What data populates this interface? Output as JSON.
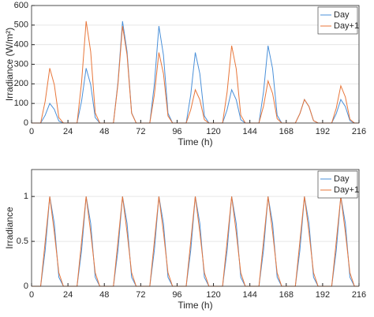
{
  "chart_data": [
    {
      "type": "line",
      "ylabel": "Irradiance (W/m²)",
      "xlabel": "Time (h)",
      "x": [
        0,
        3,
        6,
        9,
        12,
        15,
        18,
        21,
        24,
        27,
        30,
        33,
        36,
        39,
        42,
        45,
        48,
        51,
        54,
        57,
        60,
        63,
        66,
        69,
        72,
        75,
        78,
        81,
        84,
        87,
        90,
        93,
        96,
        99,
        102,
        105,
        108,
        111,
        114,
        117,
        120,
        123,
        126,
        129,
        132,
        135,
        138,
        141,
        144,
        147,
        150,
        153,
        156,
        159,
        162,
        165,
        168,
        171,
        174,
        177,
        180,
        183,
        186,
        189,
        192,
        195,
        198,
        201,
        204,
        207,
        210,
        213,
        216
      ],
      "series": [
        {
          "name": "Day",
          "color": "#4a90d9",
          "values": [
            0,
            0,
            0,
            40,
            100,
            70,
            10,
            0,
            0,
            0,
            0,
            112,
            280,
            196,
            28,
            0,
            0,
            0,
            0,
            208,
            520,
            364,
            52,
            0,
            0,
            0,
            0,
            198,
            495,
            347,
            50,
            0,
            0,
            0,
            0,
            144,
            360,
            252,
            36,
            0,
            0,
            0,
            0,
            68,
            170,
            119,
            17,
            0,
            0,
            0,
            0,
            158,
            395,
            277,
            40,
            0,
            0,
            0,
            0,
            48,
            120,
            84,
            12,
            0,
            0,
            0,
            0,
            48,
            120,
            84,
            12,
            0,
            0
          ]
        },
        {
          "name": "Day+1",
          "color": "#e8763a",
          "values": [
            0,
            0,
            0,
            112,
            280,
            196,
            28,
            0,
            0,
            0,
            0,
            208,
            520,
            364,
            52,
            0,
            0,
            0,
            0,
            198,
            495,
            347,
            50,
            0,
            0,
            0,
            0,
            144,
            360,
            252,
            36,
            0,
            0,
            0,
            0,
            68,
            170,
            119,
            17,
            0,
            0,
            0,
            0,
            158,
            395,
            277,
            40,
            0,
            0,
            0,
            0,
            86,
            215,
            151,
            22,
            0,
            0,
            0,
            0,
            48,
            120,
            84,
            12,
            0,
            0,
            0,
            0,
            76,
            190,
            133,
            19,
            0,
            0
          ]
        }
      ],
      "xlim": [
        0,
        216
      ],
      "xticks": [
        0,
        24,
        48,
        72,
        96,
        120,
        144,
        168,
        192,
        216
      ],
      "ylim": [
        0,
        600
      ],
      "yticks": [
        0,
        100,
        200,
        300,
        400,
        500,
        600
      ],
      "grid": true,
      "legend": "top-right"
    },
    {
      "type": "line",
      "ylabel": "Irradiance",
      "xlabel": "Time (h)",
      "x": [
        0,
        3,
        6,
        9,
        12,
        15,
        18,
        21,
        24,
        27,
        30,
        33,
        36,
        39,
        42,
        45,
        48,
        51,
        54,
        57,
        60,
        63,
        66,
        69,
        72,
        75,
        78,
        81,
        84,
        87,
        90,
        93,
        96,
        99,
        102,
        105,
        108,
        111,
        114,
        117,
        120,
        123,
        126,
        129,
        132,
        135,
        138,
        141,
        144,
        147,
        150,
        153,
        156,
        159,
        162,
        165,
        168,
        171,
        174,
        177,
        180,
        183,
        186,
        189,
        192,
        195,
        198,
        201,
        204,
        207,
        210,
        213,
        216
      ],
      "series": [
        {
          "name": "Day",
          "color": "#4a90d9",
          "values": [
            0,
            0,
            0,
            0.4,
            1,
            0.7,
            0.1,
            0,
            0,
            0,
            0,
            0.4,
            1,
            0.7,
            0.1,
            0,
            0,
            0,
            0,
            0.4,
            1,
            0.7,
            0.1,
            0,
            0,
            0,
            0,
            0.4,
            1,
            0.7,
            0.1,
            0,
            0,
            0,
            0,
            0.4,
            1,
            0.7,
            0.1,
            0,
            0,
            0,
            0,
            0.4,
            1,
            0.7,
            0.1,
            0,
            0,
            0,
            0,
            0.4,
            1,
            0.7,
            0.1,
            0,
            0,
            0,
            0,
            0.4,
            1,
            0.7,
            0.1,
            0,
            0,
            0,
            0,
            0.4,
            1,
            0.7,
            0.1,
            0,
            0
          ]
        },
        {
          "name": "Day+1",
          "color": "#e8763a",
          "values": [
            0,
            0,
            0,
            0.5,
            1,
            0.6,
            0.15,
            0,
            0,
            0,
            0,
            0.5,
            1,
            0.6,
            0.15,
            0,
            0,
            0,
            0,
            0.5,
            1,
            0.6,
            0.15,
            0,
            0,
            0,
            0,
            0.5,
            1,
            0.6,
            0.15,
            0,
            0,
            0,
            0,
            0.5,
            1,
            0.6,
            0.15,
            0,
            0,
            0,
            0,
            0.5,
            1,
            0.6,
            0.15,
            0,
            0,
            0,
            0,
            0.5,
            1,
            0.6,
            0.15,
            0,
            0,
            0,
            0,
            0.5,
            1,
            0.6,
            0.15,
            0,
            0,
            0,
            0,
            0.5,
            1,
            0.6,
            0.15,
            0,
            0
          ]
        }
      ],
      "xlim": [
        0,
        216
      ],
      "xticks": [
        0,
        24,
        48,
        72,
        96,
        120,
        144,
        168,
        192,
        216
      ],
      "ylim": [
        0,
        1.3
      ],
      "yticks": [
        0,
        0.5,
        1
      ],
      "grid": true,
      "legend": "top-right"
    }
  ]
}
